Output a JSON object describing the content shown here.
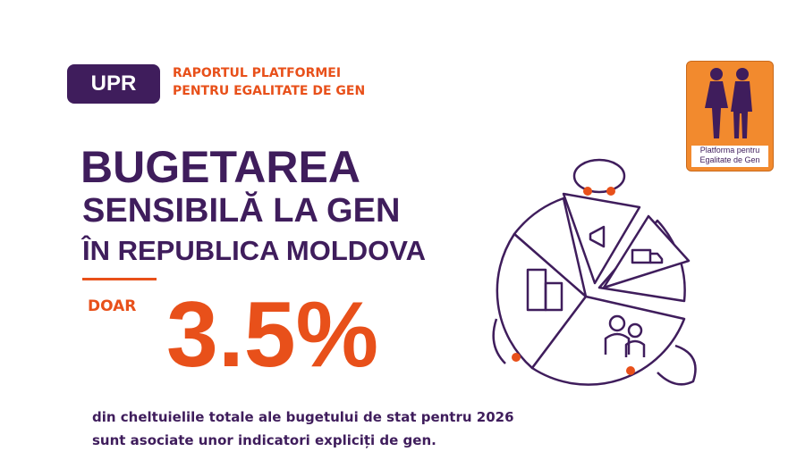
{
  "badge": "UPR",
  "header": {
    "line1": "RAPORTUL PLATFORMEI",
    "line2": "PENTRU EGALITATE DE GEN"
  },
  "title": {
    "line1": "BUGETAREA",
    "line2": "SENSIBILĂ LA GEN",
    "line3": "ÎN REPUBLICA MOLDOVA"
  },
  "highlight": {
    "label": "DOAR",
    "figure": "3.5%"
  },
  "description": {
    "line1": "din cheltuielile totale ale bugetului de stat pentru 2026",
    "line2": "sunt asociate unor indicatori expliciți de gen."
  },
  "logo": {
    "line1": "Platforma pentru",
    "line2": "Egalitate de Gen"
  }
}
